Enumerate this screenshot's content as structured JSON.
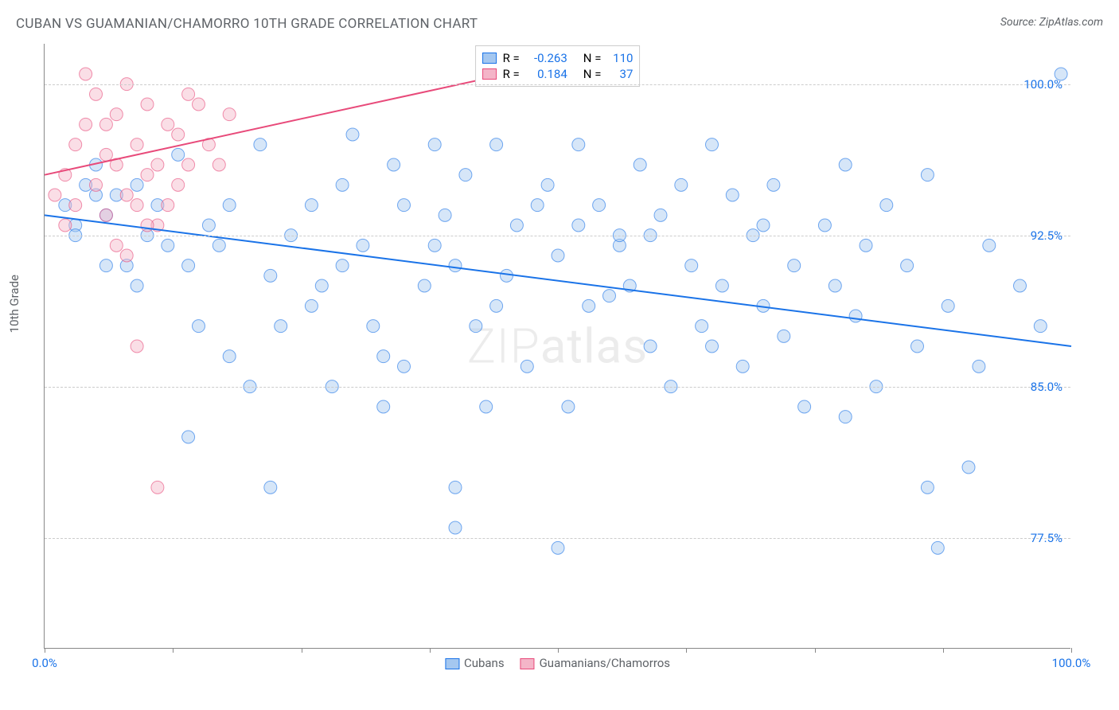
{
  "title": "CUBAN VS GUAMANIAN/CHAMORRO 10TH GRADE CORRELATION CHART",
  "source": "Source: ZipAtlas.com",
  "y_axis_label": "10th Grade",
  "watermark": {
    "part1": "ZIP",
    "part2": "atlas"
  },
  "chart": {
    "type": "scatter",
    "background_color": "#ffffff",
    "grid_color": "#cccccc",
    "grid_style": "dashed",
    "axis_color": "#888888",
    "xlim": [
      0,
      100
    ],
    "ylim": [
      72,
      102
    ],
    "x_ticks": [
      0,
      12.5,
      25,
      37.5,
      50,
      62.5,
      75,
      87.5,
      100
    ],
    "x_tick_labels": {
      "0": "0.0%",
      "100": "100.0%"
    },
    "y_ticks": [
      77.5,
      85.0,
      92.5,
      100.0
    ],
    "y_tick_labels": [
      "77.5%",
      "85.0%",
      "92.5%",
      "100.0%"
    ],
    "marker_radius": 8,
    "marker_opacity": 0.45,
    "series": [
      {
        "name": "Cubans",
        "color": "#1a73e8",
        "fill_color": "#a4c7f0",
        "R": "-0.263",
        "N": "110",
        "trend_line": {
          "x1": 0,
          "y1": 93.5,
          "x2": 100,
          "y2": 87.0,
          "width": 2
        },
        "points": [
          [
            99,
            100.5
          ],
          [
            2,
            94
          ],
          [
            4,
            95
          ],
          [
            5,
            96
          ],
          [
            6,
            93.5
          ],
          [
            3,
            93
          ],
          [
            7,
            94.5
          ],
          [
            9,
            95
          ],
          [
            10,
            92.5
          ],
          [
            8,
            91
          ],
          [
            11,
            94
          ],
          [
            12,
            92
          ],
          [
            13,
            96.5
          ],
          [
            14,
            91
          ],
          [
            15,
            88
          ],
          [
            16,
            93
          ],
          [
            17,
            92
          ],
          [
            18,
            94
          ],
          [
            20,
            85
          ],
          [
            21,
            97
          ],
          [
            22,
            90.5
          ],
          [
            23,
            88
          ],
          [
            24,
            92.5
          ],
          [
            18,
            86.5
          ],
          [
            26,
            94
          ],
          [
            27,
            90
          ],
          [
            28,
            85
          ],
          [
            29,
            95
          ],
          [
            30,
            97.5
          ],
          [
            31,
            92
          ],
          [
            32,
            88
          ],
          [
            33,
            84
          ],
          [
            34,
            96
          ],
          [
            35,
            94
          ],
          [
            35,
            86
          ],
          [
            22,
            80
          ],
          [
            37,
            90
          ],
          [
            38,
            97
          ],
          [
            39,
            93.5
          ],
          [
            40,
            91
          ],
          [
            41,
            95.5
          ],
          [
            42,
            88
          ],
          [
            43,
            84
          ],
          [
            44,
            97
          ],
          [
            45,
            90.5
          ],
          [
            46,
            93
          ],
          [
            47,
            86
          ],
          [
            40,
            78
          ],
          [
            14,
            82.5
          ],
          [
            49,
            95
          ],
          [
            50,
            91.5
          ],
          [
            51,
            84
          ],
          [
            52,
            97
          ],
          [
            53,
            89
          ],
          [
            54,
            94
          ],
          [
            50,
            77
          ],
          [
            56,
            92
          ],
          [
            57,
            90
          ],
          [
            58,
            96
          ],
          [
            59,
            87
          ],
          [
            60,
            93.5
          ],
          [
            61,
            85
          ],
          [
            62,
            95
          ],
          [
            63,
            91
          ],
          [
            64,
            88
          ],
          [
            65,
            97
          ],
          [
            66,
            90
          ],
          [
            67,
            94.5
          ],
          [
            68,
            86
          ],
          [
            69,
            92.5
          ],
          [
            70,
            89
          ],
          [
            56,
            92.5
          ],
          [
            71,
            95
          ],
          [
            72,
            87.5
          ],
          [
            73,
            91
          ],
          [
            74,
            84
          ],
          [
            65,
            87
          ],
          [
            76,
            93
          ],
          [
            77,
            90
          ],
          [
            78,
            96
          ],
          [
            79,
            88.5
          ],
          [
            80,
            92
          ],
          [
            81,
            85
          ],
          [
            82,
            94
          ],
          [
            78,
            83.5
          ],
          [
            84,
            91
          ],
          [
            85,
            87
          ],
          [
            86,
            95.5
          ],
          [
            87,
            77
          ],
          [
            88,
            89
          ],
          [
            70,
            93
          ],
          [
            90,
            81
          ],
          [
            91,
            86
          ],
          [
            92,
            92
          ],
          [
            86,
            80
          ],
          [
            59,
            92.5
          ],
          [
            95,
            90
          ],
          [
            48,
            94
          ],
          [
            97,
            88
          ],
          [
            52,
            93
          ],
          [
            40,
            80
          ],
          [
            33,
            86.5
          ],
          [
            55,
            89.5
          ],
          [
            38,
            92
          ],
          [
            44,
            89
          ],
          [
            29,
            91
          ],
          [
            26,
            89
          ],
          [
            9,
            90
          ],
          [
            6,
            91
          ],
          [
            3,
            92.5
          ],
          [
            5,
            94.5
          ]
        ]
      },
      {
        "name": "Guamanians/Chamorros",
        "color": "#e84a7a",
        "fill_color": "#f4b5c8",
        "R": "0.184",
        "N": "37",
        "trend_line": {
          "x1": 0,
          "y1": 95.5,
          "x2": 45,
          "y2": 100.5,
          "width": 2
        },
        "points": [
          [
            1,
            94.5
          ],
          [
            2,
            95.5
          ],
          [
            3,
            97
          ],
          [
            4,
            98
          ],
          [
            5,
            99.5
          ],
          [
            4,
            100.5
          ],
          [
            2,
            93
          ],
          [
            3,
            94
          ],
          [
            6,
            96.5
          ],
          [
            5,
            95
          ],
          [
            7,
            98.5
          ],
          [
            8,
            100
          ],
          [
            6,
            93.5
          ],
          [
            9,
            97
          ],
          [
            10,
            99
          ],
          [
            11,
            96
          ],
          [
            8,
            94.5
          ],
          [
            12,
            98
          ],
          [
            7,
            92
          ],
          [
            9,
            87
          ],
          [
            13,
            97.5
          ],
          [
            14,
            96
          ],
          [
            15,
            99
          ],
          [
            10,
            95.5
          ],
          [
            11,
            93
          ],
          [
            16,
            97
          ],
          [
            12,
            94
          ],
          [
            8,
            91.5
          ],
          [
            17,
            96
          ],
          [
            18,
            98.5
          ],
          [
            10,
            93
          ],
          [
            13,
            95
          ],
          [
            14,
            99.5
          ],
          [
            7,
            96
          ],
          [
            11,
            80
          ],
          [
            9,
            94
          ],
          [
            6,
            98
          ]
        ]
      }
    ],
    "legend_top_labels": {
      "R": "R =",
      "N": "N ="
    },
    "legend_bottom": [
      "Cubans",
      "Guamanians/Chamorros"
    ]
  }
}
